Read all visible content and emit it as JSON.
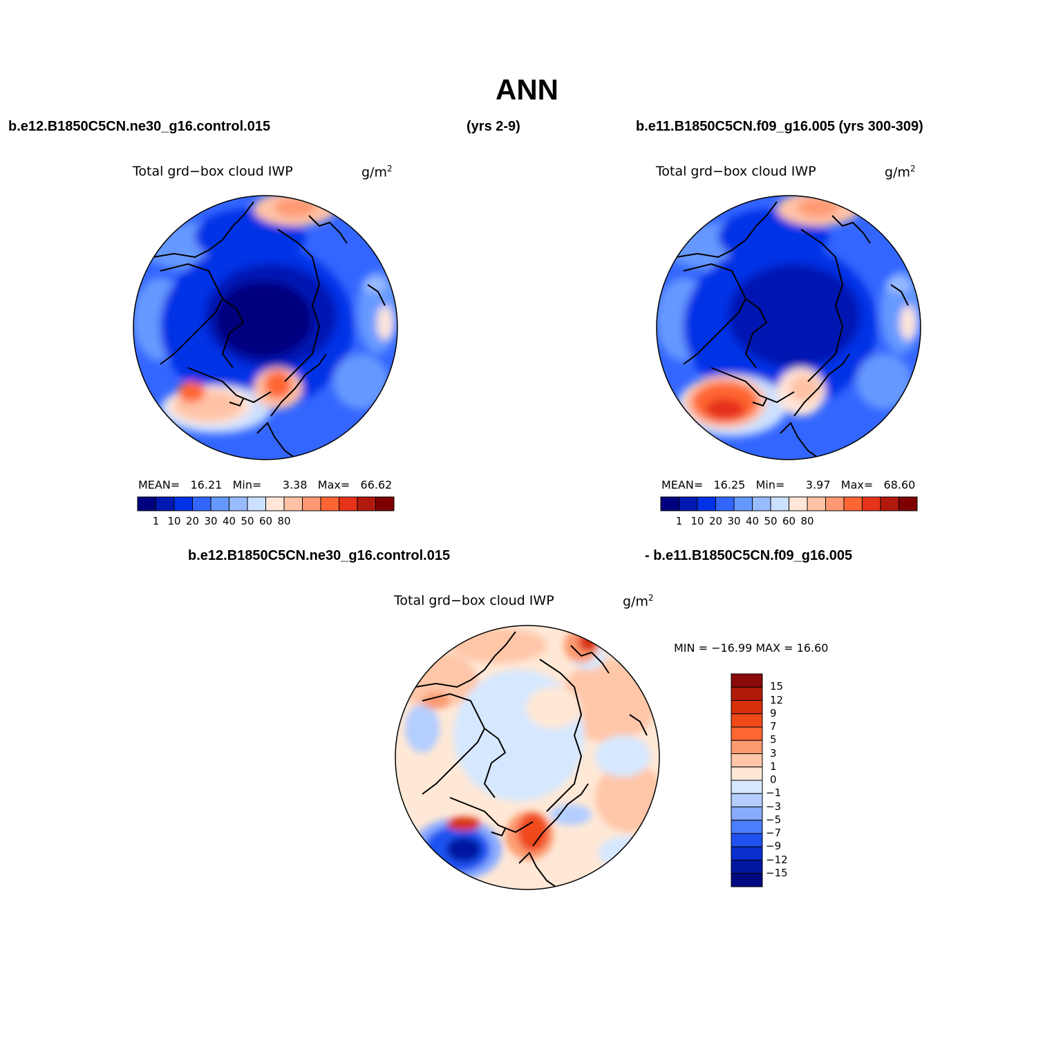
{
  "title": "ANN",
  "header": {
    "case1": "b.e12.B1850C5CN.ne30_g16.control.015",
    "years1": "(yrs 2-9)",
    "case2": "b.e11.B1850C5CN.f09_g16.005 (yrs 300-309)",
    "diff_left": "b.e12.B1850C5CN.ne30_g16.control.015",
    "diff_right": "- b.e11.B1850C5CN.f09_g16.005"
  },
  "panels": [
    {
      "variable": "Total grd−box cloud IWP",
      "units": "g/m",
      "units_sup": "2",
      "mean_label": "MEAN=",
      "mean": "16.21",
      "min_label": "Min=",
      "min": "3.38",
      "max_label": "Max=",
      "max": "66.62"
    },
    {
      "variable": "Total grd−box cloud IWP",
      "units": "g/m",
      "units_sup": "2",
      "mean_label": "MEAN=",
      "mean": "16.25",
      "min_label": "Min=",
      "min": "3.97",
      "max_label": "Max=",
      "max": "68.60"
    }
  ],
  "diff_panel": {
    "variable": "Total grd−box cloud IWP",
    "units": "g/m",
    "units_sup": "2",
    "minmax": "MIN = −16.99 MAX =   16.60"
  },
  "colorbar": {
    "ticks": [
      "1",
      "10",
      "20",
      "30",
      "40",
      "50",
      "60",
      "80"
    ],
    "colors": [
      "#00007f",
      "#0019b2",
      "#0033e6",
      "#3366ff",
      "#6699ff",
      "#99bbff",
      "#cce0ff",
      "#ffe6d9",
      "#ffc2a6",
      "#ff9973",
      "#ff6633",
      "#e6331a",
      "#b2190d",
      "#7f0000"
    ]
  },
  "diff_colorbar": {
    "ticks": [
      "15",
      "12",
      "9",
      "7",
      "5",
      "3",
      "1",
      "0",
      "−1",
      "−3",
      "−5",
      "−7",
      "−9",
      "−12",
      "−15"
    ],
    "colors": [
      "#8b0a0a",
      "#b01a08",
      "#d8300a",
      "#f04a1a",
      "#ff6633",
      "#fc9a70",
      "#ffc6a8",
      "#ffe8d6",
      "#d6e8ff",
      "#b3ceff",
      "#87aaff",
      "#4d7dff",
      "#1f52f0",
      "#0a2fcf",
      "#0018a0",
      "#000a80"
    ]
  },
  "colors": {
    "ocean_blue": "#3366ff",
    "deep_blue": "#0019b2",
    "warm_red": "#ff6633",
    "light_blue": "#cce0ff"
  }
}
